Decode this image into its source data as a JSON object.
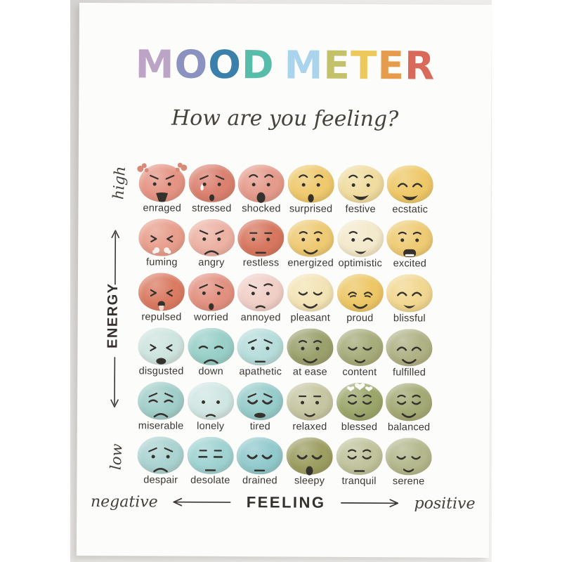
{
  "poster": {
    "subtitle": "How are you feeling?",
    "ink_color": "#35322e",
    "paper_color": "#fcfcfb",
    "backdrop_color": "#dedcda",
    "title_letters": [
      {
        "ch": "M",
        "color": "#bca4c6"
      },
      {
        "ch": "O",
        "color": "#8b92bf"
      },
      {
        "ch": "O",
        "color": "#3a80ab"
      },
      {
        "ch": "D",
        "color": "#58bcab"
      },
      {
        "ch": " ",
        "color": ""
      },
      {
        "ch": "M",
        "color": "#a9d4ec"
      },
      {
        "ch": "E",
        "color": "#c3c169"
      },
      {
        "ch": "T",
        "color": "#edc95c"
      },
      {
        "ch": "E",
        "color": "#e69b4d"
      },
      {
        "ch": "R",
        "color": "#d9695a"
      }
    ],
    "extra_colors": {
      "steam": "#d98a76",
      "sweat": "#fbfaf8",
      "nosesteam": "#f6f3ef",
      "hearts": "#fafaf6",
      "tongue": "#f2d8d2"
    }
  },
  "axes": {
    "energy": {
      "label": "ENERGY",
      "high": "high",
      "low": "low"
    },
    "feeling": {
      "label": "FEELING",
      "negative": "negative",
      "positive": "positive"
    }
  },
  "moods": {
    "columns": 6,
    "rows": [
      [
        {
          "label": "enraged",
          "color": "#e59484",
          "face": {
            "eyes": "dot",
            "brows": "angry",
            "mouth": "shout",
            "extra": "steam"
          }
        },
        {
          "label": "stressed",
          "color": "#db8170",
          "face": {
            "eyes": "dot",
            "brows": "worried",
            "mouth": "opensmall",
            "extra": "sweat"
          }
        },
        {
          "label": "shocked",
          "color": "#e59b8c",
          "face": {
            "eyes": "dot",
            "brows": "raised",
            "mouth": "openbig"
          }
        },
        {
          "label": "surprised",
          "color": "#eec96d",
          "face": {
            "eyes": "dot",
            "brows": "raised",
            "mouth": "openO"
          }
        },
        {
          "label": "festive",
          "color": "#f0dc9f",
          "face": {
            "eyes": "dot",
            "brows": "raised",
            "mouth": "bigsmile"
          }
        },
        {
          "label": "ecstatic",
          "color": "#eec868",
          "face": {
            "eyes": "happy",
            "brows": "none",
            "mouth": "bigsmile"
          }
        }
      ],
      [
        {
          "label": "fuming",
          "color": "#e89e8d",
          "face": {
            "eyes": "scrunch",
            "brows": "none",
            "mouth": "none",
            "extra": "nosesteam"
          }
        },
        {
          "label": "angry",
          "color": "#ecb2a4",
          "face": {
            "eyes": "dot",
            "brows": "angry",
            "mouth": "frown"
          }
        },
        {
          "label": "restless",
          "color": "#d7775f",
          "face": {
            "eyes": "dot",
            "brows": "flat",
            "mouth": "flat"
          }
        },
        {
          "label": "energized",
          "color": "#eeca74",
          "face": {
            "eyes": "dot",
            "brows": "soft",
            "mouth": "smile"
          }
        },
        {
          "label": "optimistic",
          "color": "#f3e9cb",
          "face": {
            "eyes": "wink",
            "brows": "softleft",
            "mouth": "bigsmile2"
          }
        },
        {
          "label": "excited",
          "color": "#eecb74",
          "face": {
            "eyes": "dot",
            "brows": "soft",
            "mouth": "grin"
          }
        }
      ],
      [
        {
          "label": "repulsed",
          "color": "#da7b62",
          "face": {
            "eyes": "scrunch",
            "brows": "none",
            "mouth": "tongue"
          }
        },
        {
          "label": "worried",
          "color": "#e29181",
          "face": {
            "eyes": "dot",
            "brows": "worried",
            "mouth": "opensmall"
          }
        },
        {
          "label": "annoyed",
          "color": "#f0cfc7",
          "face": {
            "eyes": "dot",
            "brows": "furrow",
            "mouth": "smallfrown"
          }
        },
        {
          "label": "pleasant",
          "color": "#f3e4b6",
          "face": {
            "eyes": "closed",
            "brows": "none",
            "mouth": "smile"
          }
        },
        {
          "label": "proud",
          "color": "#edc765",
          "face": {
            "eyes": "squint",
            "brows": "none",
            "mouth": "smile"
          }
        },
        {
          "label": "blissful",
          "color": "#f1d790",
          "face": {
            "eyes": "happy",
            "brows": "none",
            "mouth": "bigsmile2"
          }
        }
      ],
      [
        {
          "label": "disgusted",
          "color": "#cee4df",
          "face": {
            "eyes": "scrunch",
            "brows": "none",
            "mouth": "openfrown"
          }
        },
        {
          "label": "down",
          "color": "#98cfc8",
          "face": {
            "eyes": "sad",
            "brows": "none",
            "mouth": "frown"
          }
        },
        {
          "label": "apathetic",
          "color": "#b6dddb",
          "face": {
            "eyes": "dot",
            "brows": "worried",
            "mouth": "flat"
          }
        },
        {
          "label": "at ease",
          "color": "#9ba16d",
          "face": {
            "eyes": "dot",
            "brows": "soft",
            "mouth": "smile"
          }
        },
        {
          "label": "content",
          "color": "#a7ac7b",
          "face": {
            "eyes": "closed",
            "brows": "none",
            "mouth": "smilesmall"
          }
        },
        {
          "label": "fulfilled",
          "color": "#afb285",
          "face": {
            "eyes": "happy",
            "brows": "none",
            "mouth": "smile"
          }
        }
      ],
      [
        {
          "label": "miserable",
          "color": "#a1cec9",
          "face": {
            "eyes": "sad",
            "brows": "worried",
            "mouth": "frown"
          }
        },
        {
          "label": "lonely",
          "color": "#d0e6e3",
          "face": {
            "eyes": "dot",
            "brows": "none",
            "mouth": "smallfrown"
          }
        },
        {
          "label": "tired",
          "color": "#96ccca",
          "face": {
            "eyes": "heavy",
            "brows": "worried",
            "mouth": "yawn"
          }
        },
        {
          "label": "relaxed",
          "color": "#c6c6a2",
          "face": {
            "eyes": "dot",
            "brows": "flat",
            "mouth": "smilesmall"
          }
        },
        {
          "label": "blessed",
          "color": "#9ba66b",
          "face": {
            "eyes": "closed",
            "brows": "soft",
            "mouth": "smilesmall",
            "extra": "hearts"
          }
        },
        {
          "label": "balanced",
          "color": "#a4aa75",
          "face": {
            "eyes": "closed",
            "brows": "soft",
            "mouth": "smile"
          }
        }
      ],
      [
        {
          "label": "despair",
          "color": "#aad3d1",
          "face": {
            "eyes": "dot",
            "brows": "worried",
            "mouth": "frown"
          }
        },
        {
          "label": "desolate",
          "color": "#9fd3d2",
          "face": {
            "eyes": "half",
            "brows": "flat",
            "mouth": "flat"
          }
        },
        {
          "label": "drained",
          "color": "#91cacd",
          "face": {
            "eyes": "heavy",
            "brows": "none",
            "mouth": "flat"
          }
        },
        {
          "label": "sleepy",
          "color": "#9c9e62",
          "face": {
            "eyes": "heavy",
            "brows": "none",
            "mouth": "yawnO"
          }
        },
        {
          "label": "tranquil",
          "color": "#c0c39c",
          "face": {
            "eyes": "closed",
            "brows": "soft",
            "mouth": "flat"
          }
        },
        {
          "label": "serene",
          "color": "#b4b88c",
          "face": {
            "eyes": "closed",
            "brows": "none",
            "mouth": "smilesmall"
          }
        }
      ]
    ]
  }
}
